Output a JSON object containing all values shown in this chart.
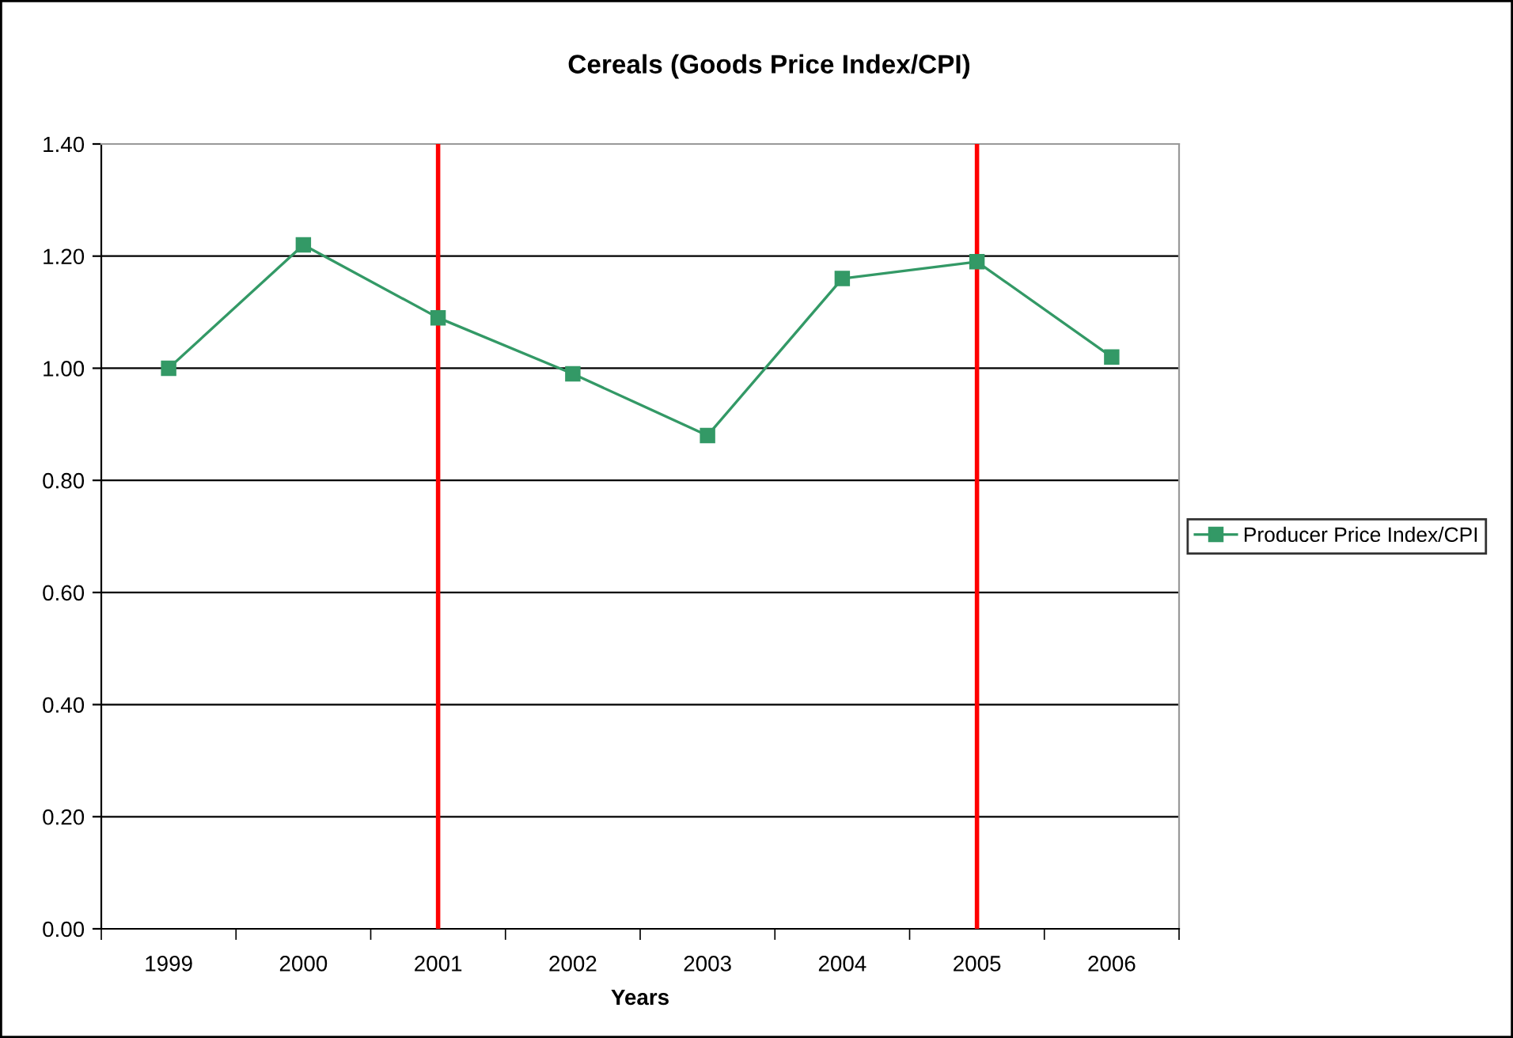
{
  "chart_data": {
    "type": "line",
    "title": "Cereals (Goods Price Index/CPI)",
    "xlabel": "Years",
    "categories": [
      "1999",
      "2000",
      "2001",
      "2002",
      "2003",
      "2004",
      "2005",
      "2006"
    ],
    "series": [
      {
        "name": "Producer Price Index/CPI",
        "color": "#339966",
        "values": [
          1.0,
          1.22,
          1.09,
          0.99,
          0.88,
          1.16,
          1.19,
          1.02
        ]
      }
    ],
    "ylim": [
      0,
      1.4
    ],
    "yticks": [
      {
        "value": 0,
        "label": "0.00"
      },
      {
        "value": 0.2,
        "label": "0.20"
      },
      {
        "value": 0.4,
        "label": "0.40"
      },
      {
        "value": 0.6,
        "label": "0.60"
      },
      {
        "value": 0.8,
        "label": "0.80"
      },
      {
        "value": 1.0,
        "label": "1.00"
      },
      {
        "value": 1.2,
        "label": "1.20"
      },
      {
        "value": 1.4,
        "label": "1.40"
      }
    ],
    "ref_lines": [
      {
        "axis": "x",
        "value": "2001",
        "color": "#ff0000"
      },
      {
        "axis": "x",
        "value": "2005",
        "color": "#ff0000"
      }
    ],
    "grid": "y",
    "legend": "right",
    "marker": "square",
    "line_style": "solid"
  }
}
